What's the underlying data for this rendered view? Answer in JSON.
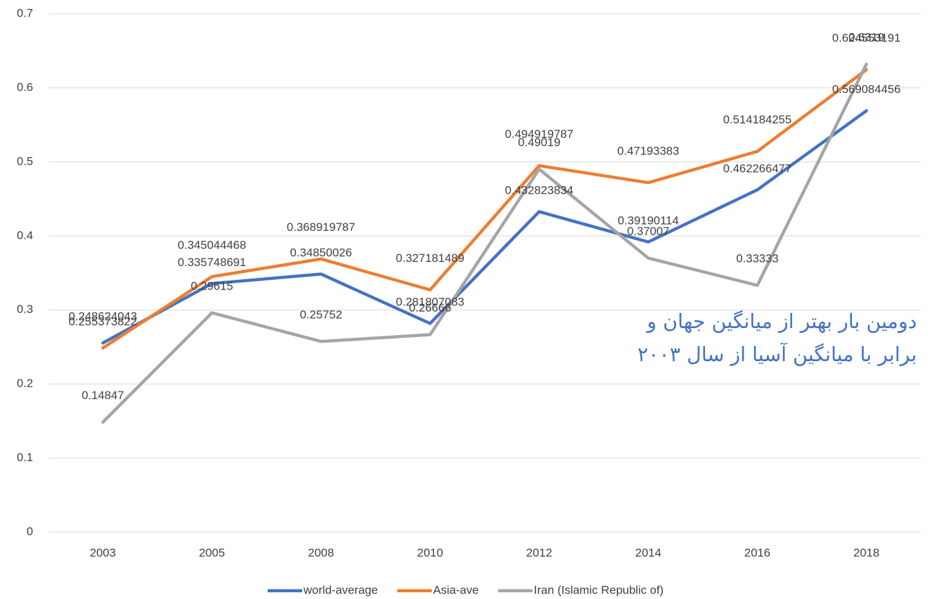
{
  "chart_data": {
    "type": "line",
    "categories": [
      "2003",
      "2005",
      "2008",
      "2010",
      "2012",
      "2014",
      "2016",
      "2018"
    ],
    "series": [
      {
        "name": "world-average",
        "color": "#4472c4",
        "values": [
          0.255373822,
          0.335748691,
          0.34850026,
          0.281807083,
          0.432823834,
          0.39190114,
          0.462266477,
          0.569084456
        ]
      },
      {
        "name": "Asia-ave",
        "color": "#ed7d31",
        "values": [
          0.248624043,
          0.345044468,
          0.368919787,
          0.327181489,
          0.494919787,
          0.47193383,
          0.514184255,
          0.624553191
        ]
      },
      {
        "name": "Iran (Islamic Republic of)",
        "color": "#a5a5a5",
        "values": [
          0.14847,
          0.29615,
          0.25752,
          0.26666,
          0.49019,
          0.37007,
          0.33333,
          0.6319
        ]
      }
    ],
    "ylim": [
      0,
      0.7
    ],
    "yticks": [
      0,
      0.1,
      0.2,
      0.3,
      0.4,
      0.5,
      0.6,
      0.7
    ],
    "grid": true,
    "legend": "bottom",
    "annotation": [
      "دومین بار بهتر از میانگین جهان و",
      "برابر با میانگین آسیا از سال ۲۰۰۳"
    ]
  }
}
